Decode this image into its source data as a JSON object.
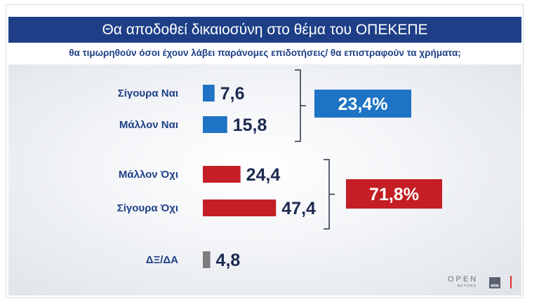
{
  "header": {
    "title": "Θα αποδοθεί δικαιοσύνη στο θέμα του ΟΠΕΚΕΠΕ",
    "subtitle": "θα τιμωρηθούν όσοι έχουν λάβει παράνομες επιδοτήσεις/ θα επιστραφούν τα χρήματα;"
  },
  "colors": {
    "title_bg": "#1e3f87",
    "blue": "#1f73c4",
    "red": "#c41f24",
    "gray": "#7d7d7d",
    "label": "#1e3f87",
    "value": "#1c2a4f"
  },
  "branding": {
    "logo": "OPEN",
    "logo_sub": "BEYOND",
    "badge": "MRB"
  },
  "chart_data": {
    "type": "bar",
    "orientation": "horizontal",
    "title": "Θα αποδοθεί δικαιοσύνη στο θέμα του ΟΠΕΚΕΠΕ",
    "categories": [
      "Σίγουρα Ναι",
      "Μάλλον Ναι",
      "Μάλλον Όχι",
      "Σίγουρα Όχι",
      "ΔΞ/ΔΑ"
    ],
    "values": [
      7.6,
      15.8,
      24.4,
      47.4,
      4.8
    ],
    "value_labels": [
      "7,6",
      "15,8",
      "24,4",
      "47,4",
      "4,8"
    ],
    "bar_colors": [
      "#1f73c4",
      "#1f73c4",
      "#c41f24",
      "#c41f24",
      "#7d7d7d"
    ],
    "groups": [
      {
        "members": [
          0,
          1
        ],
        "total": 23.4,
        "label": "23,4%",
        "color": "#1f73c4"
      },
      {
        "members": [
          2,
          3
        ],
        "total": 71.8,
        "label": "71,8%",
        "color": "#c41f24"
      }
    ],
    "xlabel": "",
    "ylabel": "",
    "grid": false,
    "legend": "none"
  }
}
